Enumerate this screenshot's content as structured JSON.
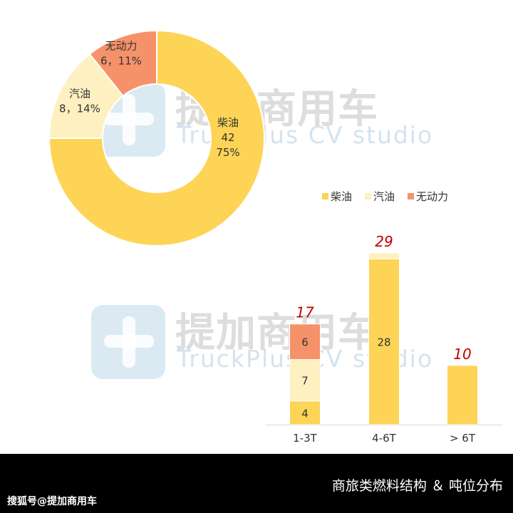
{
  "watermark": {
    "cn": "提加商用车",
    "en": "TruckPlus CV studio"
  },
  "footer": {
    "title": "商旅类燃料结构 ＆ 吨位分布",
    "source": "搜狐号@提加商用车"
  },
  "colors": {
    "diesel": "#FDD456",
    "gasoline": "#FEF0C0",
    "unpowered": "#F6926A",
    "total_label": "#C00000"
  },
  "chart_data": [
    {
      "type": "pie",
      "donut": true,
      "slices": [
        {
          "name": "柴油",
          "value": 42,
          "percent_label": "75%",
          "color": "#FDD456"
        },
        {
          "name": "汽油",
          "value": 8,
          "percent_label": "14%",
          "color": "#FEF0C0"
        },
        {
          "name": "无动力",
          "value": 6,
          "percent_label": "11%",
          "color": "#F6926A"
        }
      ]
    },
    {
      "type": "bar",
      "stacked": true,
      "categories": [
        "1-3T",
        "4-6T",
        "> 6T"
      ],
      "series": [
        {
          "name": "柴油",
          "values": [
            4,
            28,
            10
          ],
          "color": "#FDD456",
          "label_color": "#333333"
        },
        {
          "name": "汽油",
          "values": [
            7,
            1,
            0
          ],
          "color": "#FEF0C0",
          "label_color": "#333333"
        },
        {
          "name": "无动力",
          "values": [
            6,
            0,
            0
          ],
          "color": "#F6926A",
          "label_color": "#333333"
        }
      ],
      "totals": [
        17,
        29,
        10
      ],
      "segment_labels": [
        [
          "4",
          "7",
          "6"
        ],
        [
          "28",
          "",
          ""
        ],
        [
          "",
          "",
          ""
        ]
      ],
      "legend": "top",
      "ylim": [
        0,
        29
      ]
    }
  ]
}
